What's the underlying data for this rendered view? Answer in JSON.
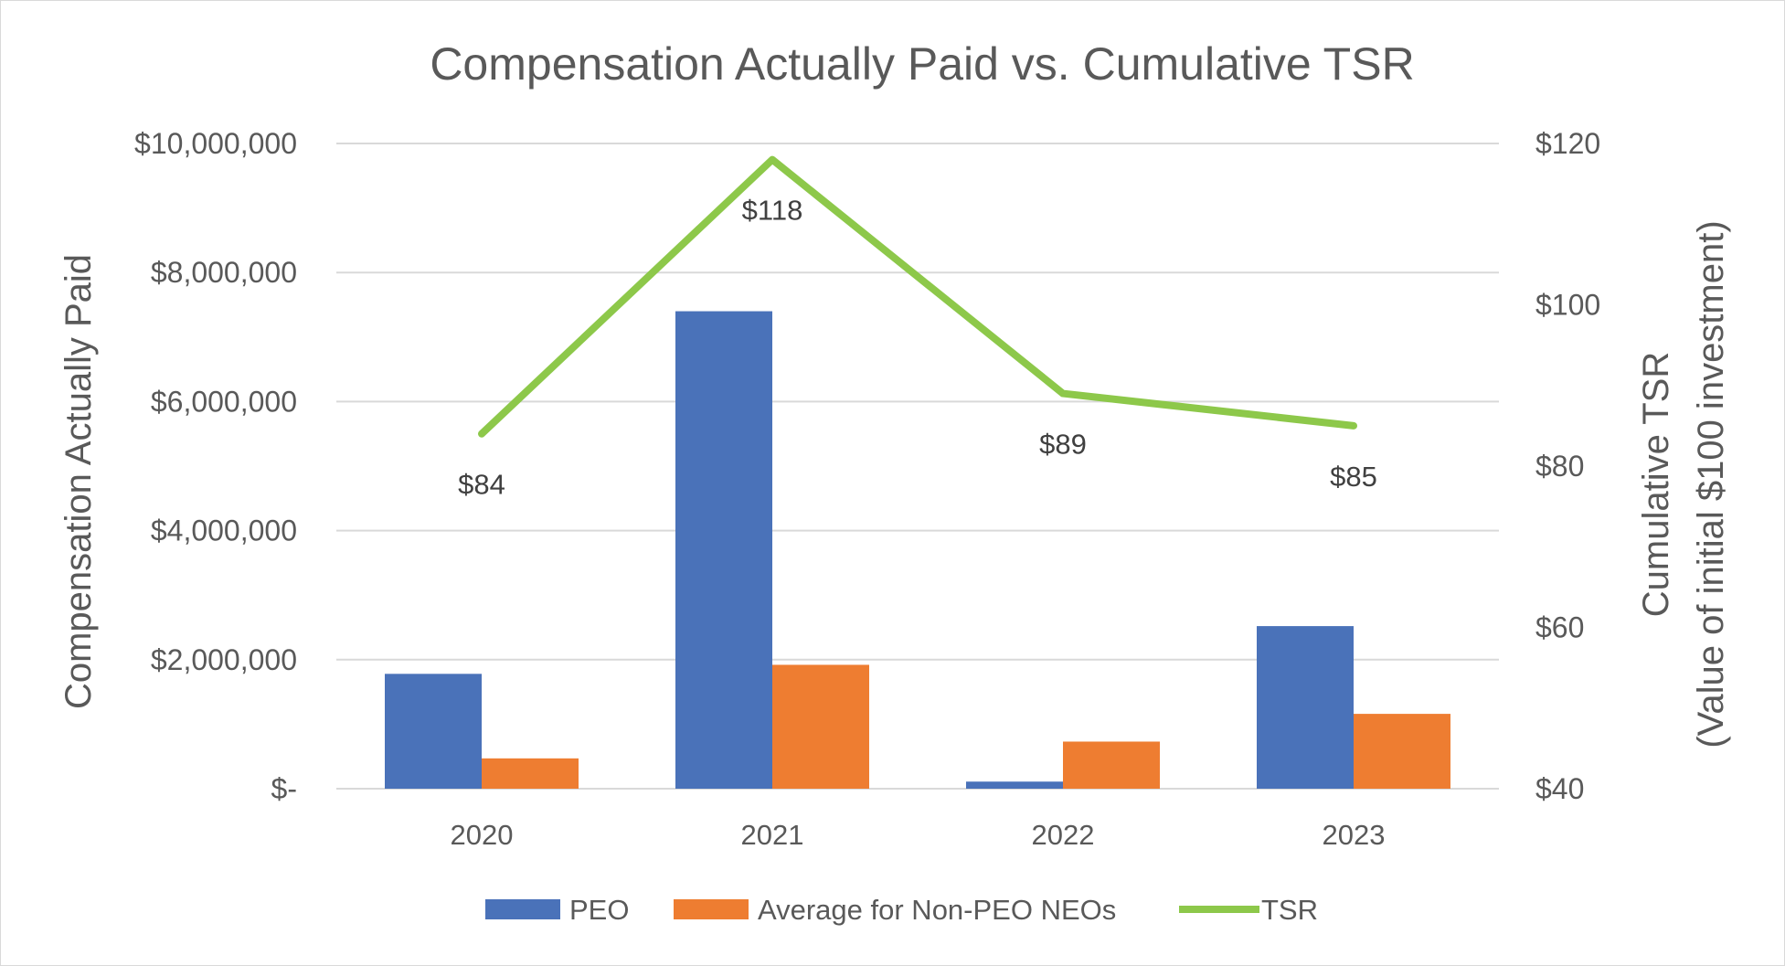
{
  "chart_data": {
    "type": "bar",
    "title": "Compensation Actually Paid vs. Cumulative TSR",
    "categories": [
      "2020",
      "2021",
      "2022",
      "2023"
    ],
    "series": [
      {
        "name": "PEO",
        "type": "bar",
        "axis": "left",
        "color": "#4a72b9",
        "values": [
          1780000,
          7400000,
          110000,
          2520000
        ]
      },
      {
        "name": "Average for Non-PEO NEOs",
        "type": "bar",
        "axis": "left",
        "color": "#ee7d31",
        "values": [
          470000,
          1920000,
          730000,
          1160000
        ]
      },
      {
        "name": "TSR",
        "type": "line",
        "axis": "right",
        "color": "#8dc84a",
        "values": [
          84,
          118,
          89,
          85
        ],
        "labels": [
          "$84",
          "$118",
          "$89",
          "$85"
        ]
      }
    ],
    "ylabel": "Compensation Actually Paid",
    "ylim": [
      0,
      10000000
    ],
    "y_ticks": [
      0,
      2000000,
      4000000,
      6000000,
      8000000,
      10000000
    ],
    "y_tick_labels": [
      "$-",
      "$2,000,000",
      "$4,000,000",
      "$6,000,000",
      "$8,000,000",
      "$10,000,000"
    ],
    "y2label_line1": "Cumulative TSR",
    "y2label_line2": "(Value of initial $100 investment)",
    "y2lim": [
      40,
      120
    ],
    "y2_ticks": [
      40,
      60,
      80,
      100,
      120
    ],
    "y2_tick_labels": [
      "$40",
      "$60",
      "$80",
      "$100",
      "$120"
    ],
    "grid": true,
    "legend_position": "bottom"
  }
}
